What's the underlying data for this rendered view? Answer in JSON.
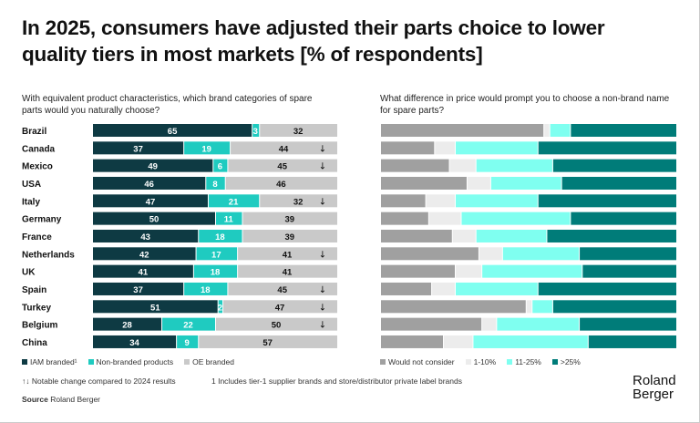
{
  "title": "In 2025, consumers have adjusted their parts choice to lower quality tiers in most markets [% of respondents]",
  "chart_data": [
    {
      "type": "bar",
      "orientation": "horizontal",
      "stacked": true,
      "subtitle": "With equivalent product characteristics, which brand categories of spare parts would you naturally choose?",
      "categories": [
        "Brazil",
        "Canada",
        "Mexico",
        "USA",
        "Italy",
        "Germany",
        "France",
        "Netherlands",
        "UK",
        "Spain",
        "Turkey",
        "Belgium",
        "China"
      ],
      "series": [
        {
          "name": "IAM branded¹",
          "color": "#0e3a43",
          "values": [
            65,
            37,
            49,
            46,
            47,
            50,
            43,
            42,
            41,
            37,
            51,
            28,
            34
          ]
        },
        {
          "name": "Non-branded products",
          "color": "#1fcbc0",
          "values": [
            3,
            19,
            6,
            8,
            21,
            11,
            18,
            17,
            18,
            18,
            2,
            22,
            9
          ]
        },
        {
          "name": "OE branded",
          "color": "#c9c9c9",
          "values": [
            32,
            44,
            45,
            46,
            32,
            39,
            39,
            41,
            41,
            45,
            47,
            50,
            57
          ]
        }
      ],
      "change_markers": [
        "",
        "↓",
        "↓",
        "",
        "↓",
        "",
        "",
        "↓",
        "",
        "↓",
        "↓",
        "↓",
        ""
      ],
      "data_labels": true,
      "legend": "bottom"
    },
    {
      "type": "bar",
      "orientation": "horizontal",
      "stacked": true,
      "subtitle": "What difference in price would prompt you to choose a non-brand name for spare parts?",
      "categories": [
        "Brazil",
        "Canada",
        "Mexico",
        "USA",
        "Italy",
        "Germany",
        "France",
        "Netherlands",
        "UK",
        "Spain",
        "Turkey",
        "Belgium",
        "China"
      ],
      "series": [
        {
          "name": "Would not consider",
          "color": "#a0a0a0",
          "values": [
            55,
            18,
            23,
            29,
            15,
            16,
            24,
            33,
            25,
            17,
            49,
            34,
            21
          ]
        },
        {
          "name": "1-10%",
          "color": "#ececec",
          "values": [
            2,
            7,
            9,
            8,
            10,
            11,
            8,
            8,
            9,
            8,
            2,
            5,
            10
          ]
        },
        {
          "name": "11-25%",
          "color": "#7ffff0",
          "values": [
            7,
            28,
            26,
            24,
            28,
            37,
            24,
            26,
            34,
            28,
            7,
            28,
            39
          ]
        },
        {
          "name": ">25%",
          "color": "#007c79",
          "values": [
            36,
            47,
            42,
            39,
            47,
            36,
            44,
            33,
            32,
            47,
            42,
            33,
            30
          ]
        }
      ],
      "data_labels": false,
      "legend": "bottom"
    }
  ],
  "notes": {
    "change": "↑↓ Notable change compared to 2024 results",
    "footnote": "1 Includes tier-1 supplier brands and store/distributor private label brands",
    "source_label": "Source",
    "source": "Roland Berger"
  },
  "logo": {
    "line1": "Roland",
    "line2": "Berger"
  }
}
